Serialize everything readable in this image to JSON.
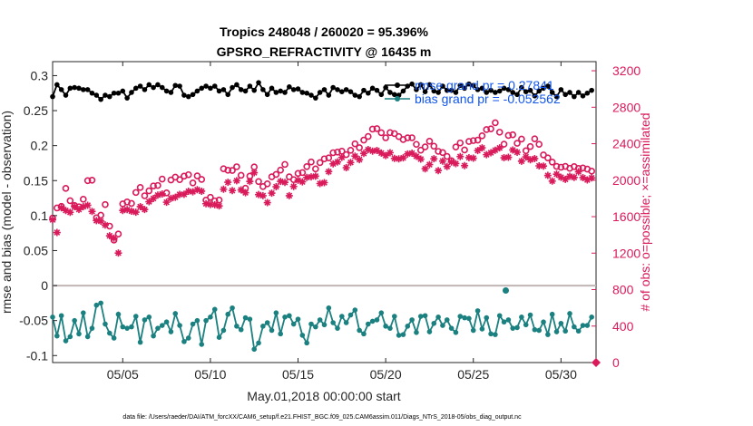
{
  "chart_data": {
    "type": "line",
    "title": "Tropics 248048 / 260020 = 95.396%",
    "subtitle": "GPSRO_REFRACTIVITY @ 16435 m",
    "xlabel": "May.01,2018 00:00:00 start",
    "ylabel": "rmse and bias (model - observation)",
    "ylabel_right": "# of obs: o=possible; ×=assimilated",
    "footnote": "data file: /Users/raeder/DAI/ATM_forcXX/CAM6_setup/f.e21.FHIST_BGC.f09_025.CAM6assim.011/Diags_NTrS_2018-05/obs_diag_output.nc",
    "xlim": [
      1,
      32
    ],
    "ylim": [
      -0.11,
      0.32
    ],
    "ylim_right": [
      0,
      3300
    ],
    "x_ticks": [
      5,
      10,
      15,
      20,
      25,
      30
    ],
    "x_tick_labels": [
      "05/05",
      "05/10",
      "05/15",
      "05/20",
      "05/25",
      "05/30"
    ],
    "y_ticks": [
      -0.1,
      -0.05,
      0,
      0.05,
      0.1,
      0.15,
      0.2,
      0.25,
      0.3
    ],
    "y_tick_labels": [
      "-0.1",
      "-0.05",
      "0",
      "0.05",
      "0.1",
      "0.15",
      "0.2",
      "0.25",
      "0.3"
    ],
    "y_right_ticks": [
      0,
      400,
      800,
      1200,
      1600,
      2000,
      2400,
      2800,
      3200
    ],
    "y_right_tick_labels": [
      "0",
      "400",
      "800",
      "1200",
      "1600",
      "2000",
      "2400",
      "2800",
      "3200"
    ],
    "legend": [
      {
        "label": "rmse grand pr = 0.27841",
        "color": "#000000"
      },
      {
        "label": "bias grand pr = -0.052562",
        "color": "#1b8080"
      }
    ],
    "colors": {
      "rmse": "#000000",
      "bias": "#1b8080",
      "counts": "#d91a5b",
      "zero_line": "#c0b4b4"
    },
    "series": [
      {
        "name": "rmse",
        "axis": "left",
        "x": [
          1.0,
          1.25,
          1.5,
          1.75,
          2.0,
          2.25,
          2.5,
          2.75,
          3.0,
          3.25,
          3.5,
          3.75,
          4.0,
          4.25,
          4.5,
          4.75,
          5.0,
          5.25,
          5.5,
          5.75,
          6.0,
          6.25,
          6.5,
          6.75,
          7.0,
          7.25,
          7.5,
          7.75,
          8.0,
          8.25,
          8.5,
          8.75,
          9.0,
          9.25,
          9.5,
          9.75,
          10.0,
          10.25,
          10.5,
          10.75,
          11.0,
          11.25,
          11.5,
          11.75,
          12.0,
          12.25,
          12.5,
          12.75,
          13.0,
          13.25,
          13.5,
          13.75,
          14.0,
          14.25,
          14.5,
          14.75,
          15.0,
          15.25,
          15.5,
          15.75,
          16.0,
          16.25,
          16.5,
          16.75,
          17.0,
          17.25,
          17.5,
          17.75,
          18.0,
          18.25,
          18.5,
          18.75,
          19.0,
          19.25,
          19.5,
          19.75,
          20.0,
          20.25,
          20.5,
          20.75,
          21.0,
          21.25,
          21.5,
          21.75,
          22.0,
          22.25,
          22.5,
          22.75,
          23.0,
          23.25,
          23.5,
          23.75,
          24.0,
          24.25,
          24.5,
          24.75,
          25.0,
          25.25,
          25.5,
          25.75,
          26.0,
          26.25,
          26.5,
          26.75,
          27.0,
          27.25,
          27.5,
          27.75,
          28.0,
          28.25,
          28.5,
          28.75,
          29.0,
          29.25,
          29.5,
          29.75,
          30.0,
          30.25,
          30.5,
          30.75,
          31.0,
          31.25,
          31.5,
          31.75
        ],
        "values": [
          0.27,
          0.287,
          0.28,
          0.272,
          0.282,
          0.283,
          0.282,
          0.28,
          0.28,
          0.275,
          0.272,
          0.266,
          0.272,
          0.27,
          0.275,
          0.275,
          0.278,
          0.268,
          0.276,
          0.282,
          0.285,
          0.28,
          0.287,
          0.283,
          0.287,
          0.283,
          0.278,
          0.276,
          0.286,
          0.285,
          0.272,
          0.27,
          0.273,
          0.278,
          0.282,
          0.285,
          0.282,
          0.285,
          0.278,
          0.28,
          0.273,
          0.283,
          0.287,
          0.28,
          0.278,
          0.285,
          0.279,
          0.29,
          0.28,
          0.273,
          0.282,
          0.276,
          0.278,
          0.276,
          0.284,
          0.28,
          0.281,
          0.276,
          0.275,
          0.272,
          0.268,
          0.276,
          0.28,
          0.272,
          0.283,
          0.28,
          0.277,
          0.28,
          0.277,
          0.272,
          0.27,
          0.279,
          0.275,
          0.282,
          0.279,
          0.273,
          0.283,
          0.276,
          0.273,
          0.272,
          0.278,
          0.285,
          0.288,
          0.28,
          0.287,
          0.277,
          0.287,
          0.278,
          0.276,
          0.285,
          0.279,
          0.279,
          0.276,
          0.286,
          0.282,
          0.288,
          0.286,
          0.28,
          0.282,
          0.276,
          0.279,
          0.276,
          0.278,
          0.282,
          0.28,
          0.276,
          0.273,
          0.283,
          0.277,
          0.279,
          0.271,
          0.278,
          0.282,
          0.285,
          0.276,
          0.27,
          0.28,
          0.273,
          0.276,
          0.27,
          0.276,
          0.271,
          0.275,
          0.279
        ]
      },
      {
        "name": "bias",
        "axis": "left",
        "x": [
          1.0,
          1.25,
          1.5,
          1.75,
          2.0,
          2.25,
          2.5,
          2.75,
          3.0,
          3.25,
          3.5,
          3.75,
          4.0,
          4.25,
          4.5,
          4.75,
          5.0,
          5.25,
          5.5,
          5.75,
          6.0,
          6.25,
          6.5,
          6.75,
          7.0,
          7.25,
          7.5,
          7.75,
          8.0,
          8.25,
          8.5,
          8.75,
          9.0,
          9.25,
          9.5,
          9.75,
          10.0,
          10.25,
          10.5,
          10.75,
          11.0,
          11.25,
          11.5,
          11.75,
          12.0,
          12.25,
          12.5,
          12.75,
          13.0,
          13.25,
          13.5,
          13.75,
          14.0,
          14.25,
          14.5,
          14.75,
          15.0,
          15.25,
          15.5,
          15.75,
          16.0,
          16.25,
          16.5,
          16.75,
          17.0,
          17.25,
          17.5,
          17.75,
          18.0,
          18.25,
          18.5,
          18.75,
          19.0,
          19.25,
          19.5,
          19.75,
          20.0,
          20.25,
          20.5,
          20.75,
          21.0,
          21.25,
          21.5,
          21.75,
          22.0,
          22.25,
          22.5,
          22.75,
          23.0,
          23.25,
          23.5,
          23.75,
          24.0,
          24.25,
          24.5,
          24.75,
          25.0,
          25.25,
          25.5,
          25.75,
          26.0,
          26.25,
          26.5,
          26.75,
          27.0,
          27.25,
          27.5,
          27.75,
          28.0,
          28.25,
          28.5,
          28.75,
          29.0,
          29.25,
          29.5,
          29.75,
          30.0,
          30.25,
          30.5,
          30.75,
          31.0,
          31.25,
          31.5,
          31.75
        ],
        "values": [
          -0.045,
          -0.072,
          -0.043,
          -0.079,
          -0.073,
          -0.05,
          -0.069,
          -0.039,
          -0.073,
          -0.061,
          -0.028,
          -0.025,
          -0.055,
          -0.068,
          -0.075,
          -0.041,
          -0.059,
          -0.061,
          -0.059,
          -0.044,
          -0.081,
          -0.049,
          -0.045,
          -0.072,
          -0.061,
          -0.057,
          -0.052,
          -0.066,
          -0.04,
          -0.057,
          -0.08,
          -0.075,
          -0.055,
          -0.05,
          -0.084,
          -0.05,
          -0.045,
          -0.034,
          -0.074,
          -0.064,
          -0.041,
          -0.032,
          -0.058,
          -0.063,
          -0.046,
          -0.048,
          -0.091,
          -0.082,
          -0.058,
          -0.053,
          -0.064,
          -0.039,
          -0.069,
          -0.045,
          -0.043,
          -0.055,
          -0.048,
          -0.071,
          -0.082,
          -0.055,
          -0.059,
          -0.049,
          -0.056,
          -0.032,
          -0.053,
          -0.061,
          -0.044,
          -0.053,
          -0.042,
          -0.035,
          -0.064,
          -0.069,
          -0.055,
          -0.051,
          -0.049,
          -0.039,
          -0.058,
          -0.061,
          -0.044,
          -0.071,
          -0.07,
          -0.058,
          -0.049,
          -0.067,
          -0.044,
          -0.043,
          -0.066,
          -0.054,
          -0.045,
          -0.057,
          -0.049,
          -0.061,
          -0.067,
          -0.044,
          -0.046,
          -0.047,
          -0.064,
          -0.036,
          -0.062,
          -0.046,
          -0.069,
          -0.07,
          -0.043,
          -0.052,
          -0.049,
          -0.061,
          -0.06,
          -0.045,
          -0.056,
          -0.042,
          -0.063,
          -0.064,
          -0.052,
          -0.07,
          -0.041,
          -0.066,
          -0.054,
          -0.065,
          -0.04,
          -0.059,
          -0.065,
          -0.057,
          -0.057,
          -0.045
        ]
      },
      {
        "name": "possible",
        "axis": "right",
        "marker": "o",
        "x": [
          1.0,
          1.25,
          1.5,
          1.75,
          2.0,
          2.25,
          2.5,
          2.75,
          3.0,
          3.25,
          3.5,
          3.75,
          4.0,
          4.25,
          4.5,
          4.75,
          5.0,
          5.25,
          5.5,
          5.75,
          6.0,
          6.25,
          6.5,
          6.75,
          7.0,
          7.25,
          7.5,
          7.75,
          8.0,
          8.25,
          8.5,
          8.75,
          9.0,
          9.25,
          9.5,
          9.75,
          10.0,
          10.25,
          10.5,
          10.75,
          11.0,
          11.25,
          11.5,
          11.75,
          12.0,
          12.25,
          12.5,
          12.75,
          13.0,
          13.25,
          13.5,
          13.75,
          14.0,
          14.25,
          14.5,
          14.75,
          15.0,
          15.25,
          15.5,
          15.75,
          16.0,
          16.25,
          16.5,
          16.75,
          17.0,
          17.25,
          17.5,
          17.75,
          18.0,
          18.25,
          18.5,
          18.75,
          19.0,
          19.25,
          19.5,
          19.75,
          20.0,
          20.25,
          20.5,
          20.75,
          21.0,
          21.25,
          21.5,
          21.75,
          22.0,
          22.25,
          22.5,
          22.75,
          23.0,
          23.25,
          23.5,
          23.75,
          24.0,
          24.25,
          24.5,
          24.75,
          25.0,
          25.25,
          25.5,
          25.75,
          26.0,
          26.25,
          26.5,
          26.75,
          27.0,
          27.25,
          27.5,
          27.75,
          28.0,
          28.25,
          28.5,
          28.75,
          29.0,
          29.25,
          29.5,
          29.75,
          30.0,
          30.25,
          30.5,
          30.75,
          31.0,
          31.25,
          31.5,
          31.75
        ],
        "values": [
          1585,
          1695,
          1713,
          1910,
          1775,
          1723,
          1708,
          1791,
          1995,
          2000,
          1588,
          1616,
          1733,
          1496,
          1343,
          1410,
          1740,
          1761,
          1745,
          1865,
          1920,
          1829,
          1883,
          1937,
          1942,
          2012,
          1861,
          2002,
          2033,
          2006,
          2044,
          2060,
          1970,
          2047,
          2008,
          1781,
          1812,
          1773,
          1782,
          2125,
          2109,
          2107,
          2147,
          2053,
          1912,
          2044,
          2145,
          1985,
          1930,
          1960,
          2037,
          2063,
          2110,
          2173,
          2037,
          2006,
          2074,
          2083,
          2149,
          2200,
          2124,
          2192,
          2234,
          2245,
          2301,
          2308,
          2318,
          2280,
          2328,
          2399,
          2356,
          2440,
          2479,
          2560,
          2565,
          2520,
          2465,
          2522,
          2510,
          2478,
          2446,
          2464,
          2465,
          2393,
          2329,
          2365,
          2427,
          2373,
          2316,
          2303,
          2261,
          2214,
          2364,
          2408,
          2331,
          2425,
          2434,
          2440,
          2487,
          2555,
          2563,
          2630,
          2526,
          2395,
          2491,
          2498,
          2405,
          2451,
          2323,
          2369,
          2453,
          2394,
          2277,
          2245,
          2199,
          2151,
          2142,
          2151,
          2130,
          2149,
          2129,
          2134,
          2122,
          2099
        ]
      },
      {
        "name": "assimilated",
        "axis": "right",
        "marker": "*",
        "x": [
          1.0,
          1.25,
          1.5,
          1.75,
          2.0,
          2.25,
          2.5,
          2.75,
          3.0,
          3.25,
          3.5,
          3.75,
          4.0,
          4.25,
          4.5,
          4.75,
          5.0,
          5.25,
          5.5,
          5.75,
          6.0,
          6.25,
          6.5,
          6.75,
          7.0,
          7.25,
          7.5,
          7.75,
          8.0,
          8.25,
          8.5,
          8.75,
          9.0,
          9.25,
          9.5,
          9.75,
          10.0,
          10.25,
          10.5,
          10.75,
          11.0,
          11.25,
          11.5,
          11.75,
          12.0,
          12.25,
          12.5,
          12.75,
          13.0,
          13.25,
          13.5,
          13.75,
          14.0,
          14.25,
          14.5,
          14.75,
          15.0,
          15.25,
          15.5,
          15.75,
          16.0,
          16.25,
          16.5,
          16.75,
          17.0,
          17.25,
          17.5,
          17.75,
          18.0,
          18.25,
          18.5,
          18.75,
          19.0,
          19.25,
          19.5,
          19.75,
          20.0,
          20.25,
          20.5,
          20.75,
          21.0,
          21.25,
          21.5,
          21.75,
          22.0,
          22.25,
          22.5,
          22.75,
          23.0,
          23.25,
          23.5,
          23.75,
          24.0,
          24.25,
          24.5,
          24.75,
          25.0,
          25.25,
          25.5,
          25.75,
          26.0,
          26.25,
          26.5,
          26.75,
          27.0,
          27.25,
          27.5,
          27.75,
          28.0,
          28.25,
          28.5,
          28.75,
          29.0,
          29.25,
          29.5,
          29.75,
          30.0,
          30.25,
          30.5,
          30.75,
          31.0,
          31.25,
          31.5,
          31.75
        ],
        "values": [
          1565,
          1426,
          1697,
          1668,
          1647,
          1710,
          1679,
          1710,
          1725,
          1657,
          1557,
          1551,
          1508,
          1390,
          1364,
          1201,
          1668,
          1677,
          1660,
          1649,
          1710,
          1678,
          1764,
          1799,
          1836,
          1849,
          1758,
          1800,
          1813,
          1844,
          1845,
          1878,
          1873,
          1896,
          1879,
          1742,
          1733,
          1731,
          1718,
          1901,
          1977,
          1886,
          1994,
          1893,
          1862,
          1986,
          2082,
          1842,
          1830,
          1754,
          1858,
          1928,
          1987,
          1976,
          1830,
          1931,
          1999,
          1982,
          2030,
          2037,
          2044,
          1963,
          1973,
          2094,
          2179,
          2200,
          2250,
          2137,
          2194,
          2264,
          2225,
          2293,
          2336,
          2319,
          2326,
          2297,
          2270,
          2301,
          2239,
          2234,
          2245,
          2288,
          2296,
          2262,
          2231,
          2125,
          2171,
          2235,
          2105,
          2209,
          2150,
          2199,
          2182,
          2259,
          2160,
          2247,
          2241,
          2325,
          2355,
          2280,
          2301,
          2329,
          2354,
          2246,
          2251,
          2331,
          2306,
          2208,
          2256,
          2224,
          2237,
          2157,
          2155,
          2052,
          1990,
          2066,
          2031,
          2009,
          2043,
          2030,
          2092,
          2028,
          2003,
          2025
        ]
      }
    ],
    "extra_markers": [
      {
        "name": "bias-peak",
        "x": 26.85,
        "value": -0.007,
        "color": "#1b8080"
      },
      {
        "name": "right-axis-zero-marker",
        "x": 32.0,
        "count": 0,
        "color": "#d91a5b"
      }
    ]
  }
}
